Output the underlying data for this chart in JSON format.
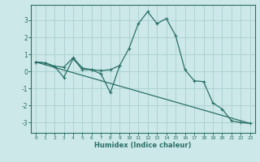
{
  "xlabel": "Humidex (Indice chaleur)",
  "background_color": "#cce8e8",
  "grid_color": "#aacfcf",
  "line_color": "#2a7068",
  "spine_color": "#2a7068",
  "xlim": [
    -0.5,
    23.5
  ],
  "ylim": [
    -3.6,
    3.9
  ],
  "xticks": [
    0,
    1,
    2,
    3,
    4,
    5,
    6,
    7,
    8,
    9,
    10,
    11,
    12,
    13,
    14,
    15,
    16,
    17,
    18,
    19,
    20,
    21,
    22,
    23
  ],
  "yticks": [
    -3,
    -2,
    -1,
    0,
    1,
    2,
    3
  ],
  "line1_x": [
    0,
    1,
    2,
    3,
    4,
    5,
    6,
    7,
    8,
    9,
    10,
    11,
    12,
    13,
    14,
    15,
    16,
    17,
    18,
    19,
    20,
    21,
    22,
    23
  ],
  "line1_y": [
    0.55,
    0.5,
    0.3,
    0.25,
    0.8,
    0.2,
    0.1,
    0.05,
    0.1,
    0.35,
    1.35,
    2.8,
    3.5,
    2.8,
    3.1,
    2.1,
    0.1,
    -0.55,
    -0.6,
    -1.85,
    -2.2,
    -2.9,
    -3.0,
    -3.05
  ],
  "line2_x": [
    0,
    1,
    2,
    3,
    4,
    5,
    6,
    7,
    8,
    9
  ],
  "line2_y": [
    0.55,
    0.5,
    0.3,
    -0.35,
    0.75,
    0.1,
    0.1,
    -0.15,
    -1.25,
    0.35
  ],
  "line3_x": [
    0,
    23
  ],
  "line3_y": [
    0.55,
    -3.05
  ]
}
